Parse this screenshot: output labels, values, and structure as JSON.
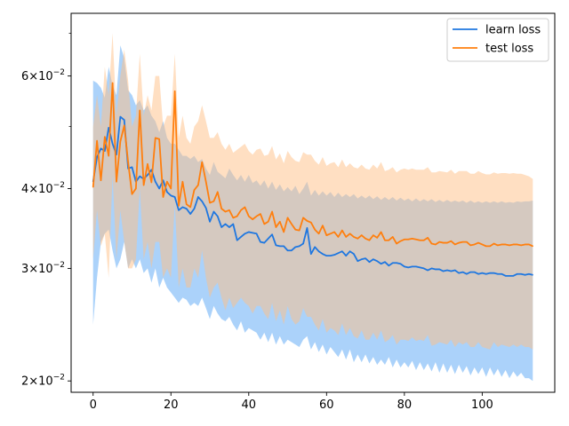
{
  "chart_data": {
    "type": "line",
    "title": "",
    "xlabel": "",
    "ylabel": "",
    "xlim": [
      -5.65,
      118.65
    ],
    "ylim": [
      0.0192,
      0.0752
    ],
    "yscale": "log",
    "grid": false,
    "legend_position": "top-right",
    "x_ticks": [
      0,
      20,
      40,
      60,
      80,
      100
    ],
    "x_tick_labels": [
      "0",
      "20",
      "40",
      "60",
      "80",
      "100"
    ],
    "y_major_ticks": [
      0.02,
      0.03,
      0.04,
      0.06
    ],
    "y_major_labels": [
      {
        "mantissa": "2",
        "base": "10",
        "exp": "−2"
      },
      {
        "mantissa": "3",
        "base": "10",
        "exp": "−2"
      },
      {
        "mantissa": "4",
        "base": "10",
        "exp": "−2"
      },
      {
        "mantissa": "6",
        "base": "10",
        "exp": "−2"
      }
    ],
    "y_minor_ticks": [
      0.05,
      0.07
    ],
    "x": [
      0,
      1,
      2,
      3,
      4,
      5,
      6,
      7,
      8,
      9,
      10,
      11,
      12,
      13,
      14,
      15,
      16,
      17,
      18,
      19,
      20,
      21,
      22,
      23,
      24,
      25,
      26,
      27,
      28,
      29,
      30,
      31,
      32,
      33,
      34,
      35,
      36,
      37,
      38,
      39,
      40,
      41,
      42,
      43,
      44,
      45,
      46,
      47,
      48,
      49,
      50,
      51,
      52,
      53,
      54,
      55,
      56,
      57,
      58,
      59,
      60,
      61,
      62,
      63,
      64,
      65,
      66,
      67,
      68,
      69,
      70,
      71,
      72,
      73,
      74,
      75,
      76,
      77,
      78,
      79,
      80,
      81,
      82,
      83,
      84,
      85,
      86,
      87,
      88,
      89,
      90,
      91,
      92,
      93,
      94,
      95,
      96,
      97,
      98,
      99,
      100,
      101,
      102,
      103,
      104,
      105,
      106,
      107,
      108,
      109,
      110,
      111,
      112,
      113
    ],
    "series": [
      {
        "name": "learn loss",
        "color": "#1f77e0",
        "band_color": "#57a6f5",
        "values": [
          0.041,
          0.0448,
          0.0462,
          0.0458,
          0.0498,
          0.047,
          0.0452,
          0.0518,
          0.0512,
          0.043,
          0.0432,
          0.041,
          0.0418,
          0.0414,
          0.042,
          0.0428,
          0.041,
          0.04,
          0.0412,
          0.0395,
          0.039,
          0.0388,
          0.037,
          0.0374,
          0.0372,
          0.0365,
          0.0372,
          0.0388,
          0.0382,
          0.0373,
          0.0355,
          0.0368,
          0.0362,
          0.0348,
          0.0352,
          0.0348,
          0.0352,
          0.0332,
          0.0336,
          0.034,
          0.0342,
          0.0341,
          0.034,
          0.033,
          0.0329,
          0.0334,
          0.0339,
          0.0326,
          0.0325,
          0.0325,
          0.032,
          0.032,
          0.0324,
          0.0325,
          0.0328,
          0.0347,
          0.0316,
          0.0324,
          0.0319,
          0.0316,
          0.0314,
          0.0314,
          0.0315,
          0.0317,
          0.0319,
          0.0314,
          0.0319,
          0.0316,
          0.0308,
          0.031,
          0.0311,
          0.0307,
          0.031,
          0.0308,
          0.0305,
          0.0307,
          0.0303,
          0.0306,
          0.0306,
          0.0305,
          0.0302,
          0.0301,
          0.0302,
          0.0302,
          0.0301,
          0.03,
          0.0298,
          0.03,
          0.0299,
          0.0299,
          0.0297,
          0.0298,
          0.0297,
          0.0298,
          0.0295,
          0.0296,
          0.0294,
          0.0296,
          0.0296,
          0.0294,
          0.0295,
          0.0294,
          0.0295,
          0.0295,
          0.0294,
          0.0294,
          0.0292,
          0.0292,
          0.0292,
          0.0294,
          0.0294,
          0.0293,
          0.0294,
          0.0293
        ],
        "lower": [
          0.0245,
          0.029,
          0.033,
          0.034,
          0.0345,
          0.032,
          0.03,
          0.031,
          0.033,
          0.03,
          0.031,
          0.03,
          0.031,
          0.0295,
          0.03,
          0.0285,
          0.03,
          0.028,
          0.029,
          0.028,
          0.0275,
          0.027,
          0.0265,
          0.027,
          0.0268,
          0.0262,
          0.0265,
          0.0262,
          0.027,
          0.026,
          0.025,
          0.0262,
          0.0255,
          0.025,
          0.0248,
          0.0252,
          0.0245,
          0.024,
          0.0248,
          0.0238,
          0.0242,
          0.024,
          0.0238,
          0.0232,
          0.0238,
          0.023,
          0.0238,
          0.0228,
          0.0235,
          0.0228,
          0.0232,
          0.023,
          0.0228,
          0.0226,
          0.0232,
          0.0235,
          0.0224,
          0.023,
          0.0222,
          0.0228,
          0.022,
          0.0226,
          0.0222,
          0.0218,
          0.0224,
          0.0216,
          0.0224,
          0.0214,
          0.022,
          0.0214,
          0.022,
          0.0213,
          0.0218,
          0.0212,
          0.0216,
          0.0212,
          0.0218,
          0.021,
          0.0216,
          0.021,
          0.0214,
          0.021,
          0.0215,
          0.0208,
          0.0214,
          0.0208,
          0.0213,
          0.0207,
          0.0214,
          0.0206,
          0.0213,
          0.0206,
          0.0212,
          0.0205,
          0.0212,
          0.0206,
          0.0211,
          0.0204,
          0.021,
          0.0205,
          0.021,
          0.0203,
          0.021,
          0.0204,
          0.0209,
          0.0203,
          0.0208,
          0.0202,
          0.0207,
          0.0203,
          0.0206,
          0.0202,
          0.0202,
          0.02
        ],
        "upper": [
          0.059,
          0.0585,
          0.0575,
          0.0555,
          0.062,
          0.058,
          0.056,
          0.067,
          0.064,
          0.057,
          0.056,
          0.054,
          0.055,
          0.053,
          0.054,
          0.052,
          0.051,
          0.049,
          0.051,
          0.048,
          0.047,
          0.047,
          0.046,
          0.045,
          0.045,
          0.0445,
          0.045,
          0.044,
          0.0445,
          0.043,
          0.042,
          0.044,
          0.0425,
          0.042,
          0.0415,
          0.043,
          0.042,
          0.0412,
          0.042,
          0.041,
          0.042,
          0.0408,
          0.0412,
          0.0404,
          0.0412,
          0.04,
          0.041,
          0.0398,
          0.0406,
          0.0396,
          0.0402,
          0.0396,
          0.0404,
          0.0392,
          0.04,
          0.041,
          0.039,
          0.0398,
          0.039,
          0.0396,
          0.039,
          0.0395,
          0.0388,
          0.0394,
          0.0388,
          0.0392,
          0.0388,
          0.0392,
          0.0386,
          0.039,
          0.0386,
          0.039,
          0.0385,
          0.0389,
          0.0384,
          0.0388,
          0.0384,
          0.0388,
          0.0383,
          0.0387,
          0.0383,
          0.0386,
          0.0382,
          0.0386,
          0.0382,
          0.0385,
          0.0382,
          0.0385,
          0.0381,
          0.0384,
          0.0381,
          0.0384,
          0.0381,
          0.0383,
          0.0381,
          0.0383,
          0.038,
          0.0383,
          0.038,
          0.0382,
          0.038,
          0.0382,
          0.038,
          0.0382,
          0.038,
          0.0382,
          0.038,
          0.0381,
          0.038,
          0.0382,
          0.0381,
          0.0382,
          0.0382,
          0.0383
        ]
      },
      {
        "name": "test loss",
        "color": "#ff7f0e",
        "band_color": "#ffbf86",
        "values": [
          0.0402,
          0.0475,
          0.0412,
          0.0482,
          0.045,
          0.0585,
          0.041,
          0.0474,
          0.0502,
          0.044,
          0.0392,
          0.04,
          0.053,
          0.0405,
          0.0437,
          0.0409,
          0.048,
          0.0478,
          0.0388,
          0.041,
          0.04,
          0.0568,
          0.0376,
          0.041,
          0.0378,
          0.0374,
          0.0398,
          0.0405,
          0.044,
          0.041,
          0.038,
          0.0382,
          0.0395,
          0.0372,
          0.0368,
          0.037,
          0.036,
          0.0362,
          0.037,
          0.0374,
          0.0362,
          0.0358,
          0.0362,
          0.0365,
          0.0352,
          0.0355,
          0.0368,
          0.0348,
          0.0355,
          0.0342,
          0.036,
          0.0352,
          0.0345,
          0.0344,
          0.036,
          0.0356,
          0.0354,
          0.0345,
          0.034,
          0.035,
          0.0338,
          0.034,
          0.0342,
          0.0336,
          0.0344,
          0.0336,
          0.034,
          0.0336,
          0.0334,
          0.0338,
          0.0334,
          0.0332,
          0.0338,
          0.0335,
          0.0342,
          0.0332,
          0.0332,
          0.0336,
          0.0328,
          0.0331,
          0.0333,
          0.0333,
          0.0334,
          0.0333,
          0.0332,
          0.0332,
          0.0335,
          0.0328,
          0.0327,
          0.033,
          0.0329,
          0.0329,
          0.0331,
          0.0327,
          0.0329,
          0.033,
          0.033,
          0.0326,
          0.0327,
          0.0329,
          0.0327,
          0.0325,
          0.0325,
          0.0328,
          0.0326,
          0.0327,
          0.0327,
          0.0326,
          0.0327,
          0.0327,
          0.0326,
          0.0327,
          0.0327,
          0.0325
        ],
        "lower": [
          0.031,
          0.037,
          0.0325,
          0.034,
          0.029,
          0.042,
          0.031,
          0.037,
          0.033,
          0.03,
          0.03,
          0.031,
          0.04,
          0.031,
          0.033,
          0.03,
          0.033,
          0.033,
          0.029,
          0.03,
          0.029,
          0.038,
          0.028,
          0.03,
          0.028,
          0.028,
          0.03,
          0.029,
          0.032,
          0.029,
          0.027,
          0.028,
          0.0285,
          0.027,
          0.0258,
          0.027,
          0.026,
          0.0265,
          0.027,
          0.0265,
          0.0262,
          0.0255,
          0.0262,
          0.0262,
          0.0255,
          0.025,
          0.0265,
          0.0248,
          0.0258,
          0.0245,
          0.0262,
          0.025,
          0.0245,
          0.0248,
          0.026,
          0.0252,
          0.0252,
          0.0245,
          0.024,
          0.025,
          0.0238,
          0.0242,
          0.024,
          0.0236,
          0.0246,
          0.0236,
          0.0242,
          0.0235,
          0.0233,
          0.024,
          0.0232,
          0.0232,
          0.0238,
          0.0232,
          0.024,
          0.023,
          0.0232,
          0.0236,
          0.0228,
          0.0232,
          0.0232,
          0.0231,
          0.0234,
          0.0231,
          0.0232,
          0.0231,
          0.0236,
          0.0227,
          0.0228,
          0.023,
          0.0229,
          0.0228,
          0.0232,
          0.0226,
          0.023,
          0.0228,
          0.023,
          0.0226,
          0.0226,
          0.023,
          0.0226,
          0.0225,
          0.0224,
          0.023,
          0.0226,
          0.0228,
          0.0227,
          0.0226,
          0.0228,
          0.0226,
          0.0228,
          0.0226,
          0.0226,
          0.0224
        ],
        "upper": [
          0.05,
          0.056,
          0.05,
          0.062,
          0.056,
          0.07,
          0.052,
          0.06,
          0.066,
          0.059,
          0.05,
          0.052,
          0.065,
          0.052,
          0.056,
          0.053,
          0.06,
          0.06,
          0.05,
          0.052,
          0.052,
          0.065,
          0.048,
          0.052,
          0.048,
          0.047,
          0.05,
          0.051,
          0.054,
          0.051,
          0.048,
          0.048,
          0.049,
          0.047,
          0.046,
          0.047,
          0.0455,
          0.046,
          0.0465,
          0.047,
          0.0458,
          0.0452,
          0.046,
          0.0462,
          0.045,
          0.0452,
          0.0466,
          0.0444,
          0.0454,
          0.0438,
          0.0458,
          0.0448,
          0.0442,
          0.044,
          0.0456,
          0.0452,
          0.0452,
          0.0442,
          0.0436,
          0.0448,
          0.0434,
          0.0438,
          0.044,
          0.0432,
          0.0444,
          0.0432,
          0.0438,
          0.0432,
          0.043,
          0.0436,
          0.043,
          0.0428,
          0.0436,
          0.043,
          0.044,
          0.0426,
          0.0428,
          0.0432,
          0.0424,
          0.0428,
          0.043,
          0.0428,
          0.043,
          0.0428,
          0.0428,
          0.0428,
          0.0432,
          0.0424,
          0.0424,
          0.0426,
          0.0425,
          0.0424,
          0.0428,
          0.0422,
          0.0426,
          0.0426,
          0.0426,
          0.0422,
          0.0422,
          0.0426,
          0.0423,
          0.0421,
          0.0421,
          0.0424,
          0.0422,
          0.0423,
          0.0423,
          0.0422,
          0.0423,
          0.0422,
          0.0422,
          0.042,
          0.0418,
          0.0414
        ]
      }
    ]
  }
}
